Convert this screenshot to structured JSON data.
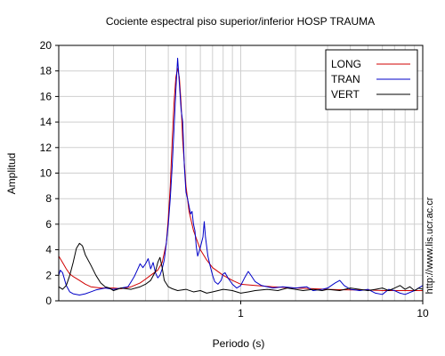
{
  "chart_data": {
    "type": "line",
    "title": "Cociente espectral piso superior/inferior  HOSP TRAUMA",
    "xlabel": "Periodo (s)",
    "ylabel": "Amplitud",
    "side_text": "http://www.lis.ucr.ac.cr",
    "x_scale": "log",
    "xlim": [
      0.1,
      10
    ],
    "ylim": [
      0,
      20
    ],
    "y_ticks": [
      0,
      2,
      4,
      6,
      8,
      10,
      12,
      14,
      16,
      18,
      20
    ],
    "x_tick_labels": [
      {
        "value": 1,
        "label": "1"
      },
      {
        "value": 10,
        "label": "10"
      }
    ],
    "grid": true,
    "legend_position": "top-right",
    "series": [
      {
        "name": "LONG",
        "color": "#d00000",
        "points": [
          [
            0.1,
            3.5
          ],
          [
            0.105,
            3.0
          ],
          [
            0.11,
            2.5
          ],
          [
            0.115,
            2.1
          ],
          [
            0.12,
            1.9
          ],
          [
            0.13,
            1.6
          ],
          [
            0.14,
            1.3
          ],
          [
            0.15,
            1.1
          ],
          [
            0.17,
            1.0
          ],
          [
            0.2,
            1.0
          ],
          [
            0.22,
            0.95
          ],
          [
            0.25,
            1.1
          ],
          [
            0.28,
            1.4
          ],
          [
            0.3,
            1.7
          ],
          [
            0.32,
            2.0
          ],
          [
            0.35,
            2.4
          ],
          [
            0.37,
            3.0
          ],
          [
            0.39,
            4.5
          ],
          [
            0.4,
            6.5
          ],
          [
            0.41,
            9.0
          ],
          [
            0.42,
            12.5
          ],
          [
            0.43,
            15.5
          ],
          [
            0.44,
            17.5
          ],
          [
            0.45,
            18.2
          ],
          [
            0.46,
            17.5
          ],
          [
            0.47,
            15.5
          ],
          [
            0.48,
            12.5
          ],
          [
            0.5,
            9.0
          ],
          [
            0.52,
            7.0
          ],
          [
            0.55,
            5.5
          ],
          [
            0.6,
            4.0
          ],
          [
            0.65,
            3.2
          ],
          [
            0.7,
            2.6
          ],
          [
            0.8,
            2.0
          ],
          [
            0.9,
            1.6
          ],
          [
            1.0,
            1.3
          ],
          [
            1.2,
            1.2
          ],
          [
            1.5,
            1.1
          ],
          [
            2.0,
            1.0
          ],
          [
            2.5,
            0.95
          ],
          [
            3.0,
            0.9
          ],
          [
            4.0,
            0.85
          ],
          [
            5.0,
            0.85
          ],
          [
            6.0,
            0.8
          ],
          [
            8.0,
            0.8
          ],
          [
            10.0,
            0.8
          ]
        ]
      },
      {
        "name": "TRAN",
        "color": "#0000c8",
        "points": [
          [
            0.1,
            2.0
          ],
          [
            0.102,
            2.4
          ],
          [
            0.105,
            2.2
          ],
          [
            0.11,
            1.2
          ],
          [
            0.115,
            0.7
          ],
          [
            0.12,
            0.55
          ],
          [
            0.13,
            0.45
          ],
          [
            0.14,
            0.55
          ],
          [
            0.15,
            0.7
          ],
          [
            0.16,
            0.85
          ],
          [
            0.18,
            1.0
          ],
          [
            0.2,
            0.9
          ],
          [
            0.22,
            1.0
          ],
          [
            0.24,
            1.1
          ],
          [
            0.25,
            1.5
          ],
          [
            0.26,
            1.9
          ],
          [
            0.27,
            2.4
          ],
          [
            0.28,
            2.9
          ],
          [
            0.29,
            2.6
          ],
          [
            0.3,
            2.9
          ],
          [
            0.31,
            3.3
          ],
          [
            0.32,
            2.5
          ],
          [
            0.33,
            3.0
          ],
          [
            0.34,
            2.2
          ],
          [
            0.35,
            1.8
          ],
          [
            0.36,
            2.0
          ],
          [
            0.37,
            2.5
          ],
          [
            0.38,
            3.2
          ],
          [
            0.39,
            4.5
          ],
          [
            0.4,
            6.0
          ],
          [
            0.41,
            8.0
          ],
          [
            0.42,
            10.5
          ],
          [
            0.43,
            13.5
          ],
          [
            0.44,
            16.5
          ],
          [
            0.45,
            19.0
          ],
          [
            0.46,
            17.0
          ],
          [
            0.47,
            15.0
          ],
          [
            0.48,
            14.0
          ],
          [
            0.49,
            10.5
          ],
          [
            0.5,
            8.5
          ],
          [
            0.51,
            8.0
          ],
          [
            0.52,
            7.4
          ],
          [
            0.53,
            6.8
          ],
          [
            0.54,
            7.0
          ],
          [
            0.55,
            6.0
          ],
          [
            0.56,
            5.5
          ],
          [
            0.57,
            4.2
          ],
          [
            0.58,
            3.5
          ],
          [
            0.6,
            4.2
          ],
          [
            0.62,
            5.0
          ],
          [
            0.63,
            6.2
          ],
          [
            0.64,
            5.0
          ],
          [
            0.66,
            3.5
          ],
          [
            0.68,
            2.7
          ],
          [
            0.7,
            2.0
          ],
          [
            0.72,
            1.5
          ],
          [
            0.75,
            1.3
          ],
          [
            0.78,
            1.6
          ],
          [
            0.8,
            2.1
          ],
          [
            0.82,
            2.2
          ],
          [
            0.85,
            1.8
          ],
          [
            0.88,
            1.5
          ],
          [
            0.9,
            1.3
          ],
          [
            0.95,
            1.0
          ],
          [
            1.0,
            1.2
          ],
          [
            1.05,
            1.8
          ],
          [
            1.1,
            2.3
          ],
          [
            1.15,
            1.9
          ],
          [
            1.2,
            1.5
          ],
          [
            1.3,
            1.2
          ],
          [
            1.4,
            1.1
          ],
          [
            1.5,
            1.0
          ],
          [
            1.7,
            1.1
          ],
          [
            2.0,
            1.0
          ],
          [
            2.3,
            1.1
          ],
          [
            2.5,
            0.8
          ],
          [
            2.8,
            0.9
          ],
          [
            3.0,
            1.0
          ],
          [
            3.3,
            1.4
          ],
          [
            3.5,
            1.6
          ],
          [
            3.7,
            1.2
          ],
          [
            4.0,
            0.9
          ],
          [
            4.5,
            0.8
          ],
          [
            5.0,
            0.9
          ],
          [
            5.5,
            0.6
          ],
          [
            6.0,
            0.5
          ],
          [
            6.5,
            0.9
          ],
          [
            7.0,
            0.8
          ],
          [
            7.5,
            0.6
          ],
          [
            8.0,
            0.5
          ],
          [
            9.0,
            0.8
          ],
          [
            10.0,
            1.2
          ]
        ]
      },
      {
        "name": "VERT",
        "color": "#000000",
        "points": [
          [
            0.1,
            1.1
          ],
          [
            0.105,
            0.9
          ],
          [
            0.11,
            1.2
          ],
          [
            0.115,
            2.0
          ],
          [
            0.12,
            3.0
          ],
          [
            0.125,
            4.1
          ],
          [
            0.13,
            4.5
          ],
          [
            0.135,
            4.3
          ],
          [
            0.14,
            3.6
          ],
          [
            0.15,
            2.8
          ],
          [
            0.16,
            2.0
          ],
          [
            0.17,
            1.4
          ],
          [
            0.18,
            1.1
          ],
          [
            0.19,
            1.0
          ],
          [
            0.2,
            0.8
          ],
          [
            0.22,
            1.0
          ],
          [
            0.25,
            0.9
          ],
          [
            0.28,
            1.1
          ],
          [
            0.3,
            1.3
          ],
          [
            0.32,
            1.6
          ],
          [
            0.34,
            2.3
          ],
          [
            0.35,
            3.0
          ],
          [
            0.36,
            3.4
          ],
          [
            0.37,
            2.6
          ],
          [
            0.38,
            1.6
          ],
          [
            0.4,
            1.1
          ],
          [
            0.42,
            0.95
          ],
          [
            0.45,
            0.8
          ],
          [
            0.5,
            0.9
          ],
          [
            0.55,
            0.7
          ],
          [
            0.6,
            0.8
          ],
          [
            0.65,
            0.6
          ],
          [
            0.7,
            0.7
          ],
          [
            0.8,
            0.9
          ],
          [
            0.9,
            0.8
          ],
          [
            1.0,
            0.6
          ],
          [
            1.1,
            0.7
          ],
          [
            1.2,
            0.8
          ],
          [
            1.4,
            0.9
          ],
          [
            1.6,
            0.8
          ],
          [
            1.8,
            1.0
          ],
          [
            2.0,
            0.9
          ],
          [
            2.2,
            0.8
          ],
          [
            2.5,
            0.9
          ],
          [
            2.8,
            0.8
          ],
          [
            3.0,
            0.9
          ],
          [
            3.5,
            0.8
          ],
          [
            4.0,
            1.0
          ],
          [
            4.5,
            0.9
          ],
          [
            5.0,
            0.8
          ],
          [
            5.5,
            0.9
          ],
          [
            6.0,
            1.0
          ],
          [
            6.5,
            0.8
          ],
          [
            7.0,
            1.0
          ],
          [
            7.5,
            1.2
          ],
          [
            8.0,
            0.9
          ],
          [
            8.5,
            1.1
          ],
          [
            9.0,
            0.8
          ],
          [
            9.5,
            1.0
          ],
          [
            10.0,
            0.9
          ]
        ]
      }
    ]
  }
}
